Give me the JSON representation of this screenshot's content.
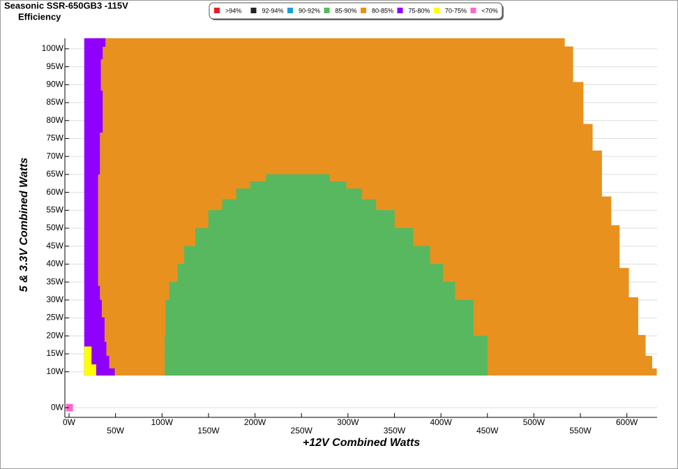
{
  "chart_data": {
    "type": "efficiency-map",
    "title": "Seasonic SSR-650GB3 -115V",
    "subtitle": "Efficiency",
    "x_label": "+12V Combined Watts",
    "y_label": "5 & 3.3V Combined Watts",
    "xlim": [
      -4.5,
      632.5
    ],
    "ylim": [
      -2.7,
      102.9
    ],
    "grid": true,
    "xticks": [
      {
        "value": 0,
        "label": "0W"
      },
      {
        "value": 50,
        "label": "50W"
      },
      {
        "value": 100,
        "label": "100W"
      },
      {
        "value": 150,
        "label": "150W"
      },
      {
        "value": 200,
        "label": "200W"
      },
      {
        "value": 250,
        "label": "250W"
      },
      {
        "value": 300,
        "label": "300W"
      },
      {
        "value": 350,
        "label": "350W"
      },
      {
        "value": 400,
        "label": "400W"
      },
      {
        "value": 450,
        "label": "450W"
      },
      {
        "value": 500,
        "label": "500W"
      },
      {
        "value": 550,
        "label": "550W"
      },
      {
        "value": 600,
        "label": "600W"
      }
    ],
    "yticks": [
      {
        "value": 0,
        "label": "0W"
      },
      {
        "value": 10,
        "label": "10W"
      },
      {
        "value": 15,
        "label": "15W"
      },
      {
        "value": 20,
        "label": "20W"
      },
      {
        "value": 25,
        "label": "25W"
      },
      {
        "value": 30,
        "label": "30W"
      },
      {
        "value": 35,
        "label": "35W"
      },
      {
        "value": 40,
        "label": "40W"
      },
      {
        "value": 45,
        "label": "45W"
      },
      {
        "value": 50,
        "label": "50W"
      },
      {
        "value": 55,
        "label": "55W"
      },
      {
        "value": 60,
        "label": "60W"
      },
      {
        "value": 65,
        "label": "65W"
      },
      {
        "value": 70,
        "label": "70W"
      },
      {
        "value": 75,
        "label": "75W"
      },
      {
        "value": 80,
        "label": "80W"
      },
      {
        "value": 85,
        "label": "85W"
      },
      {
        "value": 90,
        "label": "90W"
      },
      {
        "value": 95,
        "label": "95W"
      },
      {
        "value": 100,
        "label": "100W"
      }
    ],
    "series": [
      {
        "name": ">94%",
        "color": "#e41e26"
      },
      {
        "name": "92-94%",
        "color": "#222222"
      },
      {
        "name": "90-92%",
        "color": "#1a9fd9"
      },
      {
        "name": "85-90%",
        "color": "#58b85f",
        "y0": [
          9,
          20,
          30,
          35,
          40,
          45,
          50,
          55,
          58,
          61,
          63
        ],
        "y1": [
          20,
          30,
          35,
          40,
          45,
          50,
          55,
          58,
          61,
          63,
          65
        ],
        "x0": [
          103,
          104,
          108,
          117,
          124,
          136,
          150,
          165,
          180,
          195,
          212
        ],
        "x1": [
          450,
          435,
          415,
          402,
          388,
          370,
          350,
          330,
          315,
          298,
          280
        ]
      },
      {
        "name": "80-85%",
        "color": "#e8911f",
        "y0": [
          9,
          10.9,
          14.4,
          20.2,
          30.7,
          38.9,
          50.8,
          58.8,
          71.6,
          79,
          90.7,
          100.6
        ],
        "y1": [
          10.9,
          14.4,
          20.2,
          30.7,
          38.9,
          50.8,
          58.8,
          71.6,
          79,
          90.7,
          100.6,
          102.9
        ],
        "x0": [
          28,
          28,
          28,
          28,
          28,
          28,
          28,
          28,
          28,
          28,
          28,
          28
        ],
        "x1": [
          632,
          627,
          620,
          612,
          602,
          592,
          583,
          573,
          563,
          553,
          542,
          533
        ]
      },
      {
        "name": "75-80%",
        "color": "#9000ff",
        "y0": [
          9,
          10.9,
          14.4,
          18.3,
          25.1,
          30,
          33.9,
          65,
          76.7,
          88.3,
          97.1,
          100.6
        ],
        "y1": [
          10.9,
          14.4,
          18.3,
          25.1,
          30,
          33.9,
          65,
          76.7,
          88.3,
          97.1,
          100.6,
          102.9
        ],
        "x0": [
          16.5,
          16.5,
          16.5,
          16.5,
          16.5,
          16.5,
          16.5,
          16.5,
          16.5,
          16.5,
          16.5,
          16.5
        ],
        "x1": [
          49,
          43,
          40,
          38,
          35,
          33,
          31,
          33,
          36,
          34,
          36,
          39
        ]
      },
      {
        "name": "70-75%",
        "color": "#ffff00",
        "y0": [
          9,
          12
        ],
        "y1": [
          12,
          17
        ],
        "x0": [
          16.5,
          16.5
        ],
        "x1": [
          29,
          24
        ]
      },
      {
        "name": "<70%",
        "color": "#ff66cc",
        "y0": [
          -1
        ],
        "y1": [
          1
        ],
        "x0": [
          -3
        ],
        "x1": [
          4
        ]
      }
    ]
  }
}
